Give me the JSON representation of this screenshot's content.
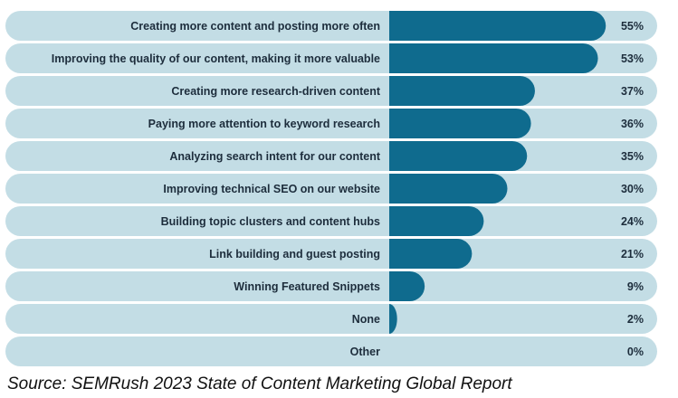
{
  "chart_data": {
    "type": "bar",
    "orientation": "horizontal",
    "categories": [
      "Creating more content and posting more often",
      "Improving the quality of our content, making it more valuable",
      "Creating more research-driven content",
      "Paying more attention to keyword research",
      "Analyzing search intent for our content",
      "Improving technical SEO on our website",
      "Building topic clusters and content hubs",
      "Link building and guest posting",
      "Winning Featured Snippets",
      "None",
      "Other"
    ],
    "values": [
      55,
      53,
      37,
      36,
      35,
      30,
      24,
      21,
      9,
      2,
      0
    ],
    "value_labels": [
      "55%",
      "53%",
      "37%",
      "36%",
      "35%",
      "30%",
      "24%",
      "21%",
      "9%",
      "2%",
      "0%"
    ],
    "color": "#0f6b8e",
    "track_color": "#c3dde5",
    "source": "Source: SEMRush 2023 State of Content Marketing Global Report"
  }
}
